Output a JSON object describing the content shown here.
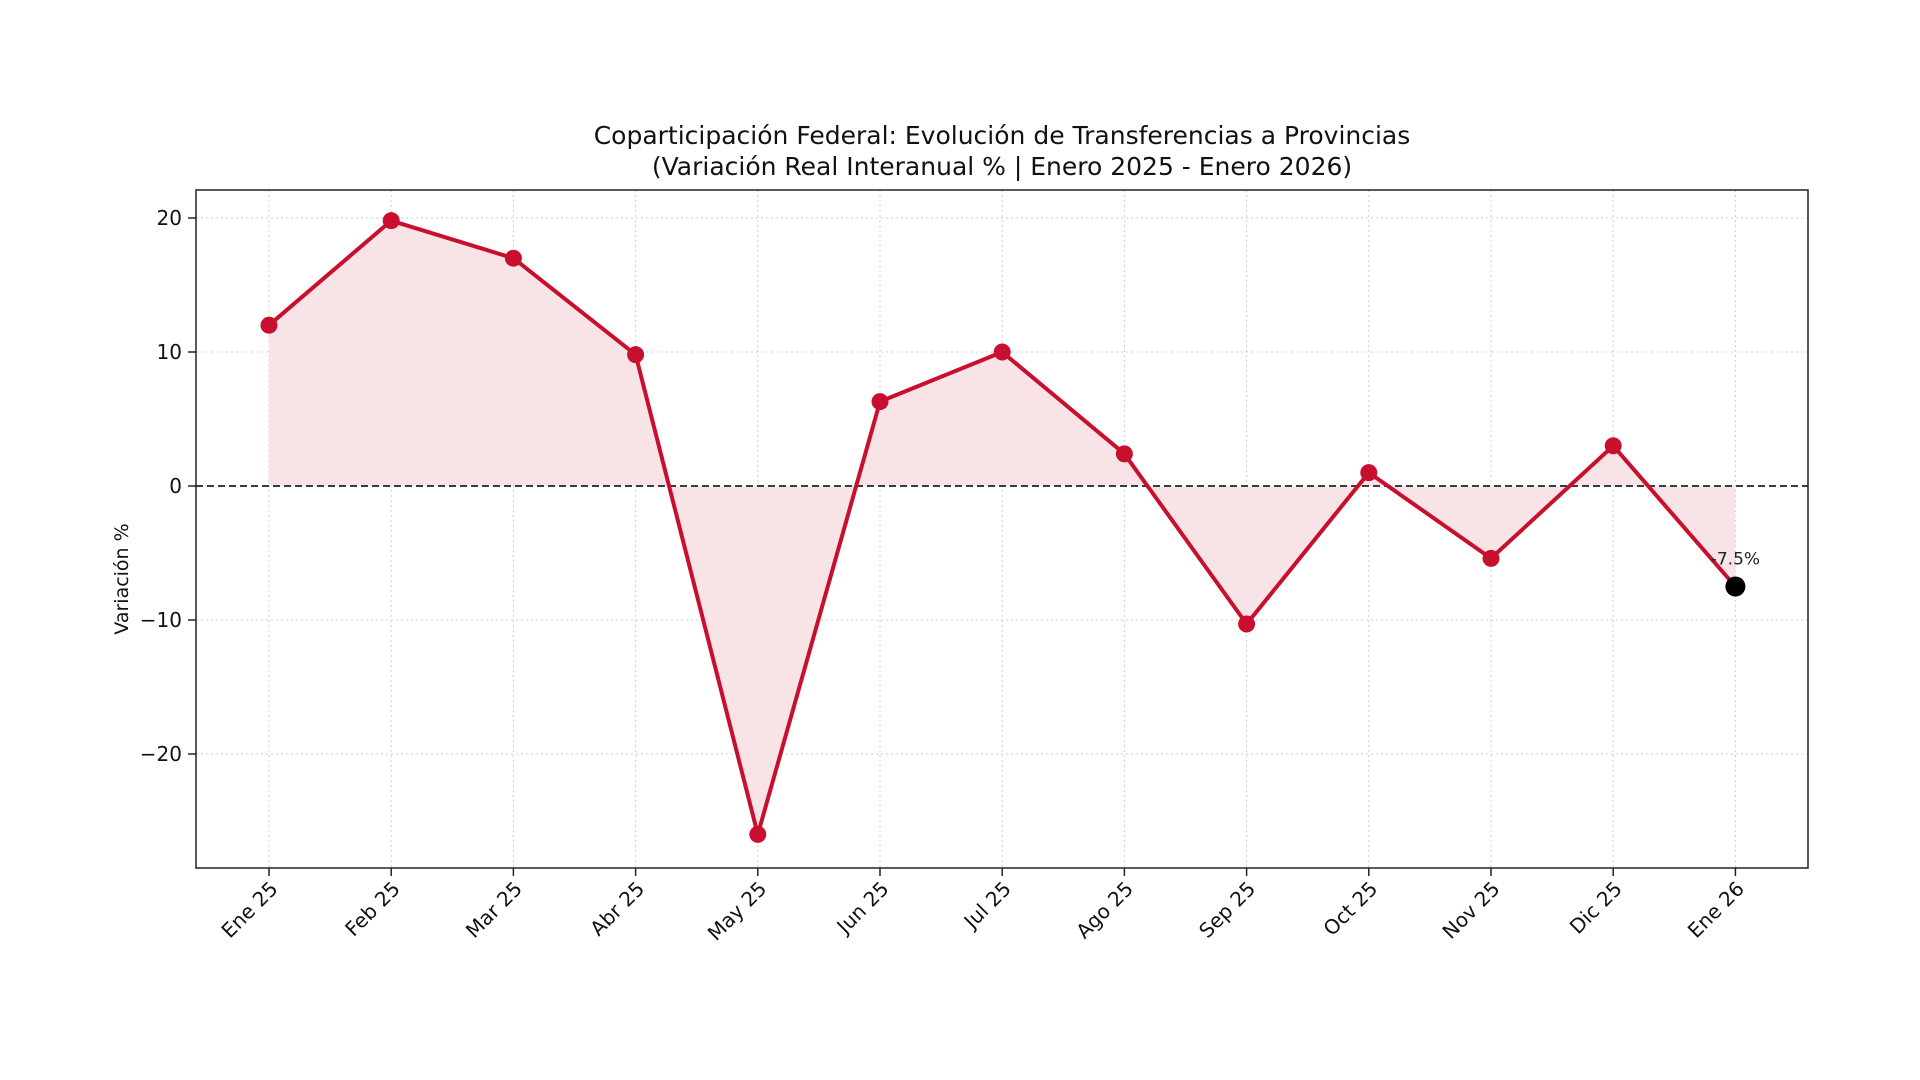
{
  "chart_data": {
    "type": "line",
    "title": "Coparticipación Federal: Evolución de Transferencias a Provincias",
    "subtitle": "(Variación Real Interanual % | Enero 2025 - Enero 2026)",
    "xlabel": "",
    "ylabel": "Variación %",
    "categories": [
      "Ene 25",
      "Feb 25",
      "Mar 25",
      "Abr 25",
      "May 25",
      "Jun 25",
      "Jul 25",
      "Ago 25",
      "Sep 25",
      "Oct 25",
      "Nov 25",
      "Dic 25",
      "Ene 26"
    ],
    "series": [
      {
        "name": "Variación Real Interanual %",
        "values": [
          12.0,
          19.8,
          17.0,
          9.8,
          -26.0,
          6.3,
          10.0,
          2.4,
          -10.3,
          1.0,
          -5.4,
          3.0,
          -7.5
        ],
        "color": "#C8102E"
      }
    ],
    "yticks": [
      -20,
      -10,
      0,
      10,
      20
    ],
    "ylim": [
      -28.5,
      21.8
    ],
    "grid": true,
    "reference_line": {
      "y": 0,
      "style": "dashed",
      "color": "#222222"
    },
    "annotations": [
      {
        "category": "Ene 26",
        "text": "-7.5%",
        "highlight_color": "#000000"
      }
    ],
    "fill_color": "#F8E4E7"
  }
}
